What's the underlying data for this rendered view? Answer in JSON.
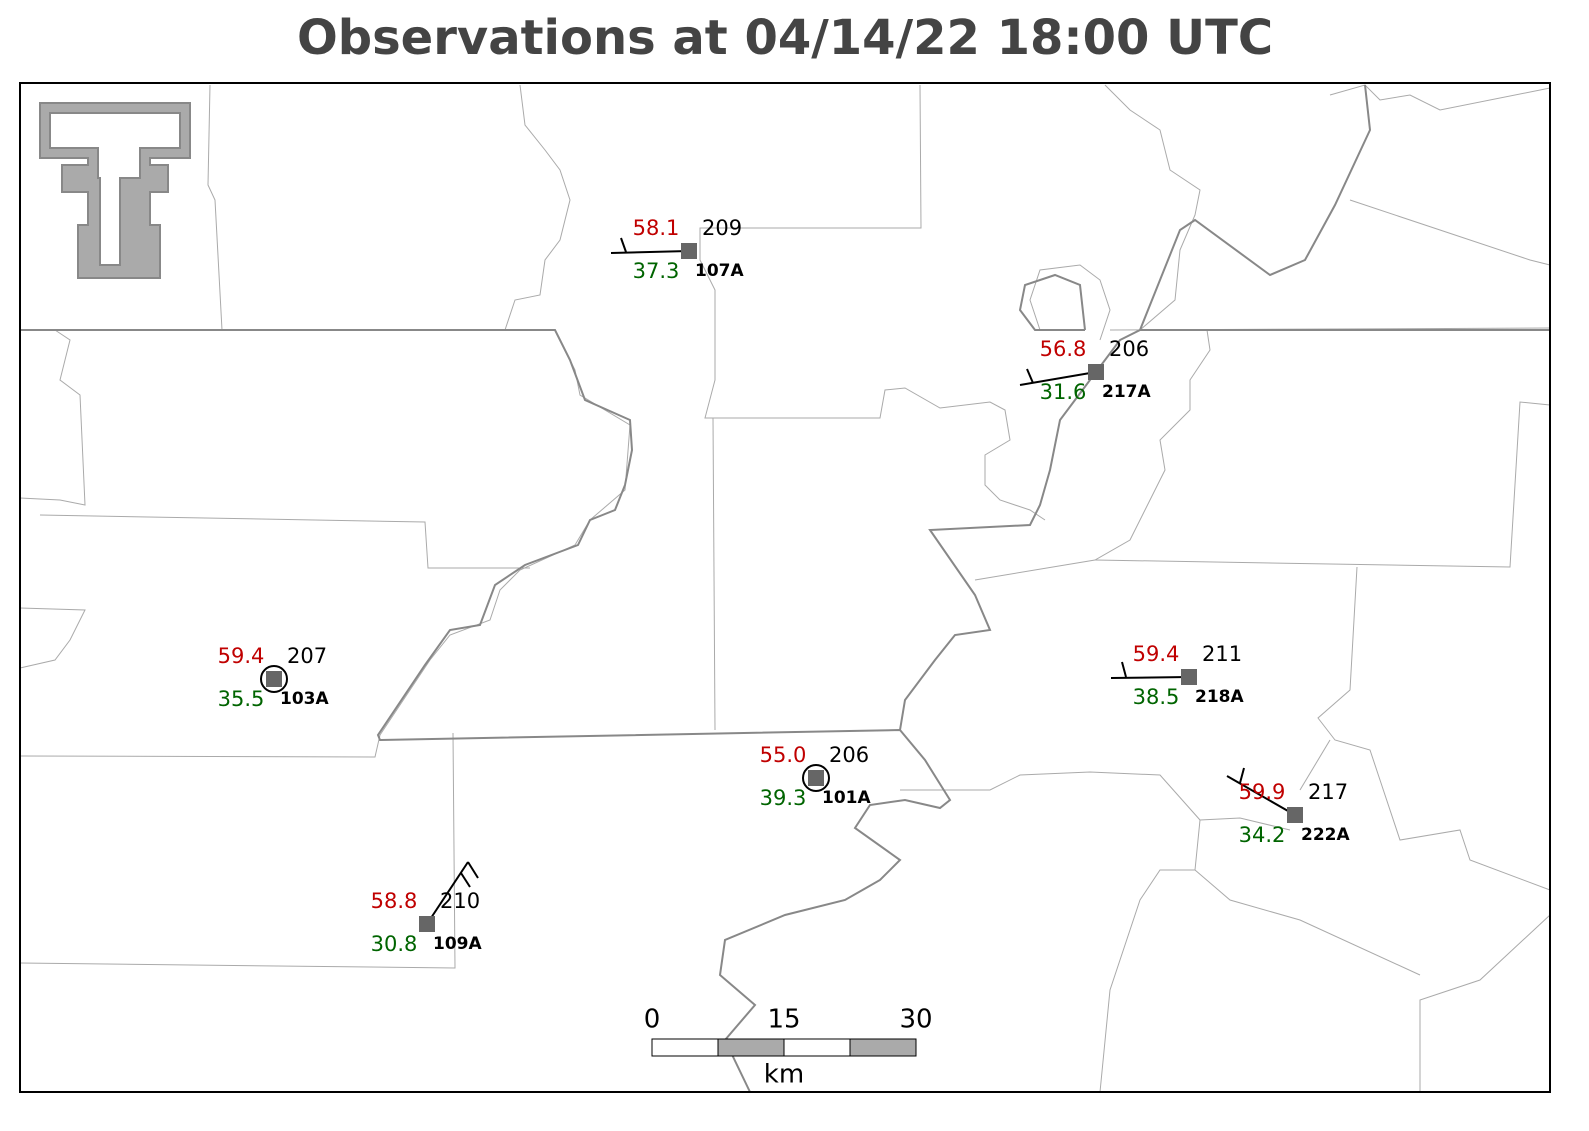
{
  "header": {
    "title": "Observations at 04/14/22 18:00 UTC"
  },
  "stations": [
    {
      "id": "107A",
      "temperature": "58.1",
      "dewpoint": "37.3",
      "pressure": "209"
    },
    {
      "id": "217A",
      "temperature": "56.8",
      "dewpoint": "31.6",
      "pressure": "206"
    },
    {
      "id": "103A",
      "temperature": "59.4",
      "dewpoint": "35.5",
      "pressure": "207"
    },
    {
      "id": "101A",
      "temperature": "55.0",
      "dewpoint": "39.3",
      "pressure": "206"
    },
    {
      "id": "218A",
      "temperature": "59.4",
      "dewpoint": "38.5",
      "pressure": "211"
    },
    {
      "id": "222A",
      "temperature": "59.9",
      "dewpoint": "34.2",
      "pressure": "217"
    },
    {
      "id": "109A",
      "temperature": "58.8",
      "dewpoint": "30.8",
      "pressure": "210"
    }
  ],
  "scale_bar": {
    "labels": [
      "0",
      "15",
      "30"
    ],
    "unit": "km"
  }
}
